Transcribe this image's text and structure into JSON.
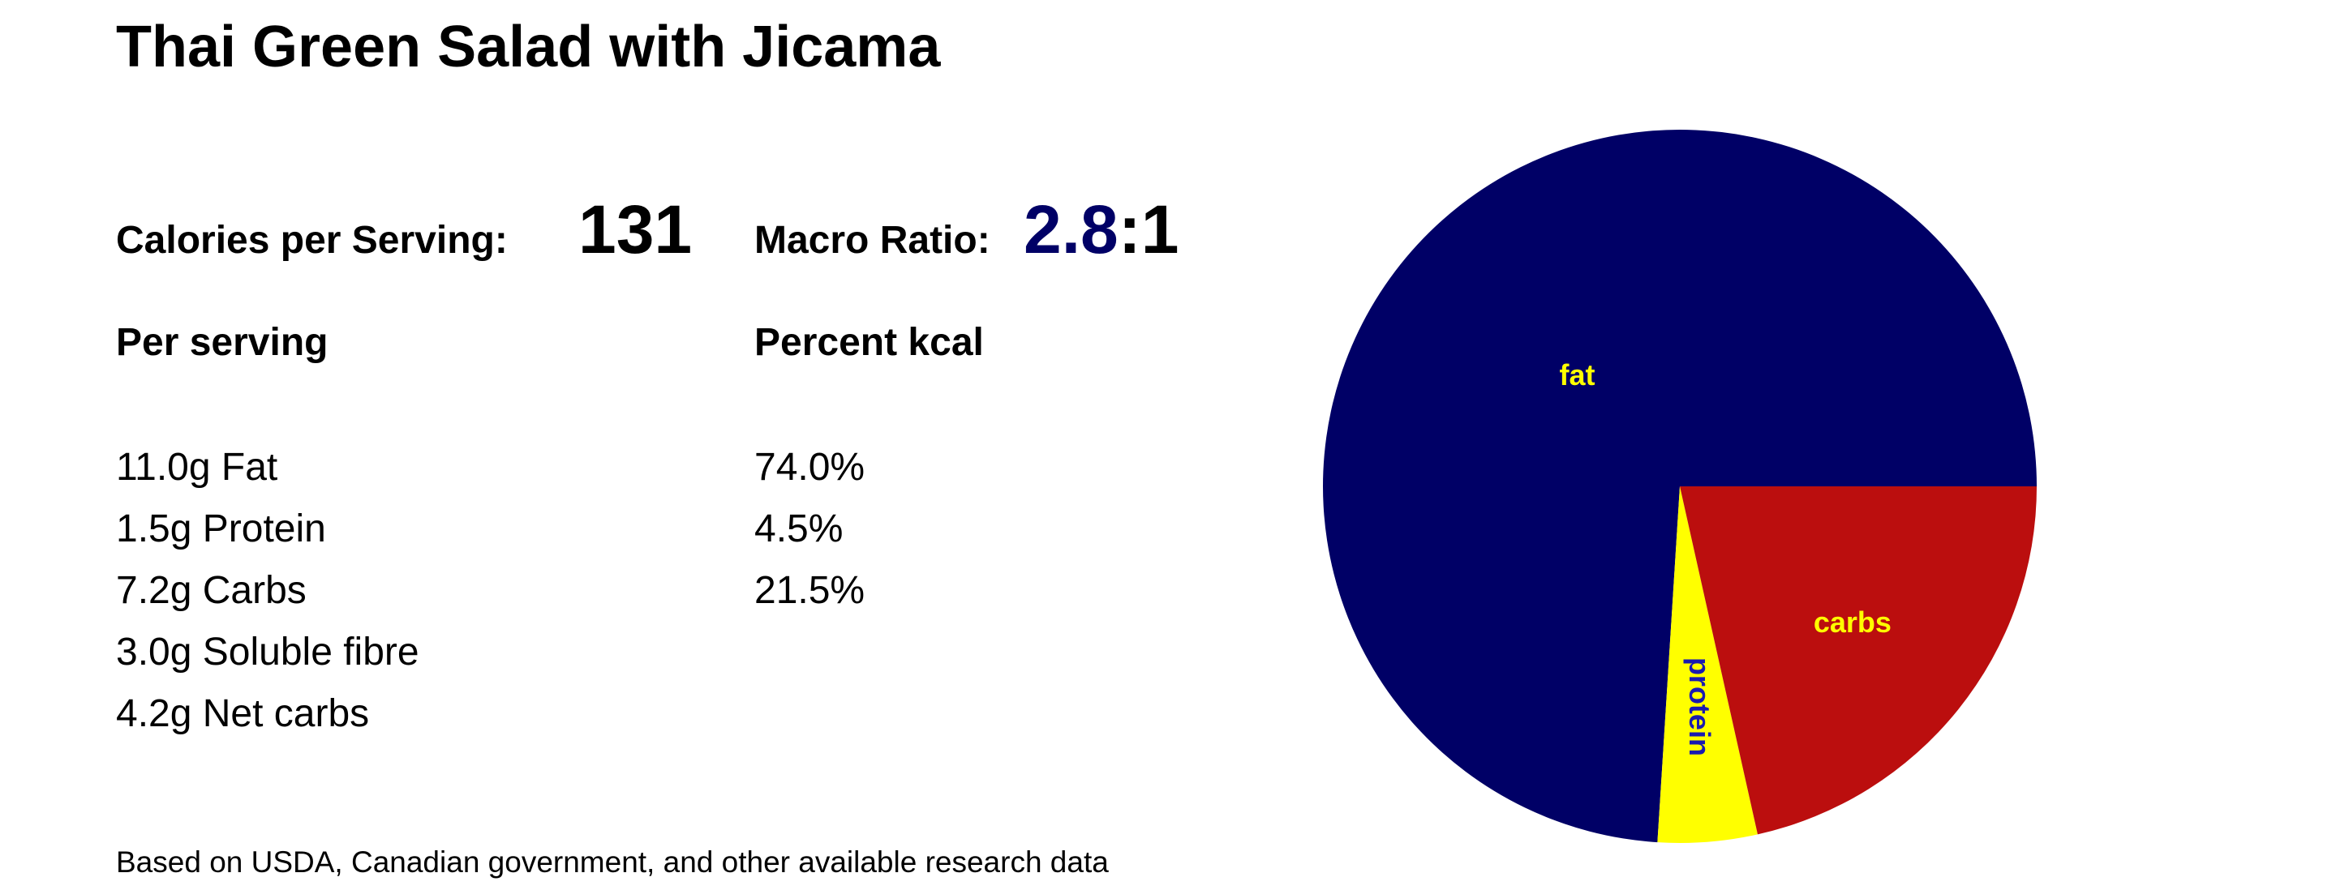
{
  "title": "Thai Green Salad with Jicama",
  "calories_label": "Calories per Serving:",
  "calories": 131,
  "macro_label": "Macro Ratio:",
  "macro_ratio": 2.8,
  "macro_ratio_suffix": ":1",
  "per_serving_heading": "Per serving",
  "percent_heading": "Percent kcal",
  "nutrients": [
    "11.0g Fat",
    "1.5g Protein",
    "7.2g Carbs",
    "3.0g Soluble fibre",
    "4.2g Net carbs"
  ],
  "footer": "Based on USDA, Canadian government, and other available research data",
  "chart_data": {
    "type": "pie",
    "categories": [
      "fat",
      "protein",
      "carbs"
    ],
    "values": [
      74.0,
      4.5,
      21.5
    ],
    "value_labels": [
      "74.0%",
      "4.5%",
      "21.5%"
    ],
    "colors": [
      "#000066",
      "#ffff00",
      "#bb0e0e"
    ],
    "label_colors": [
      "#ffff00",
      "#1a1ab0",
      "#ffff00"
    ]
  }
}
